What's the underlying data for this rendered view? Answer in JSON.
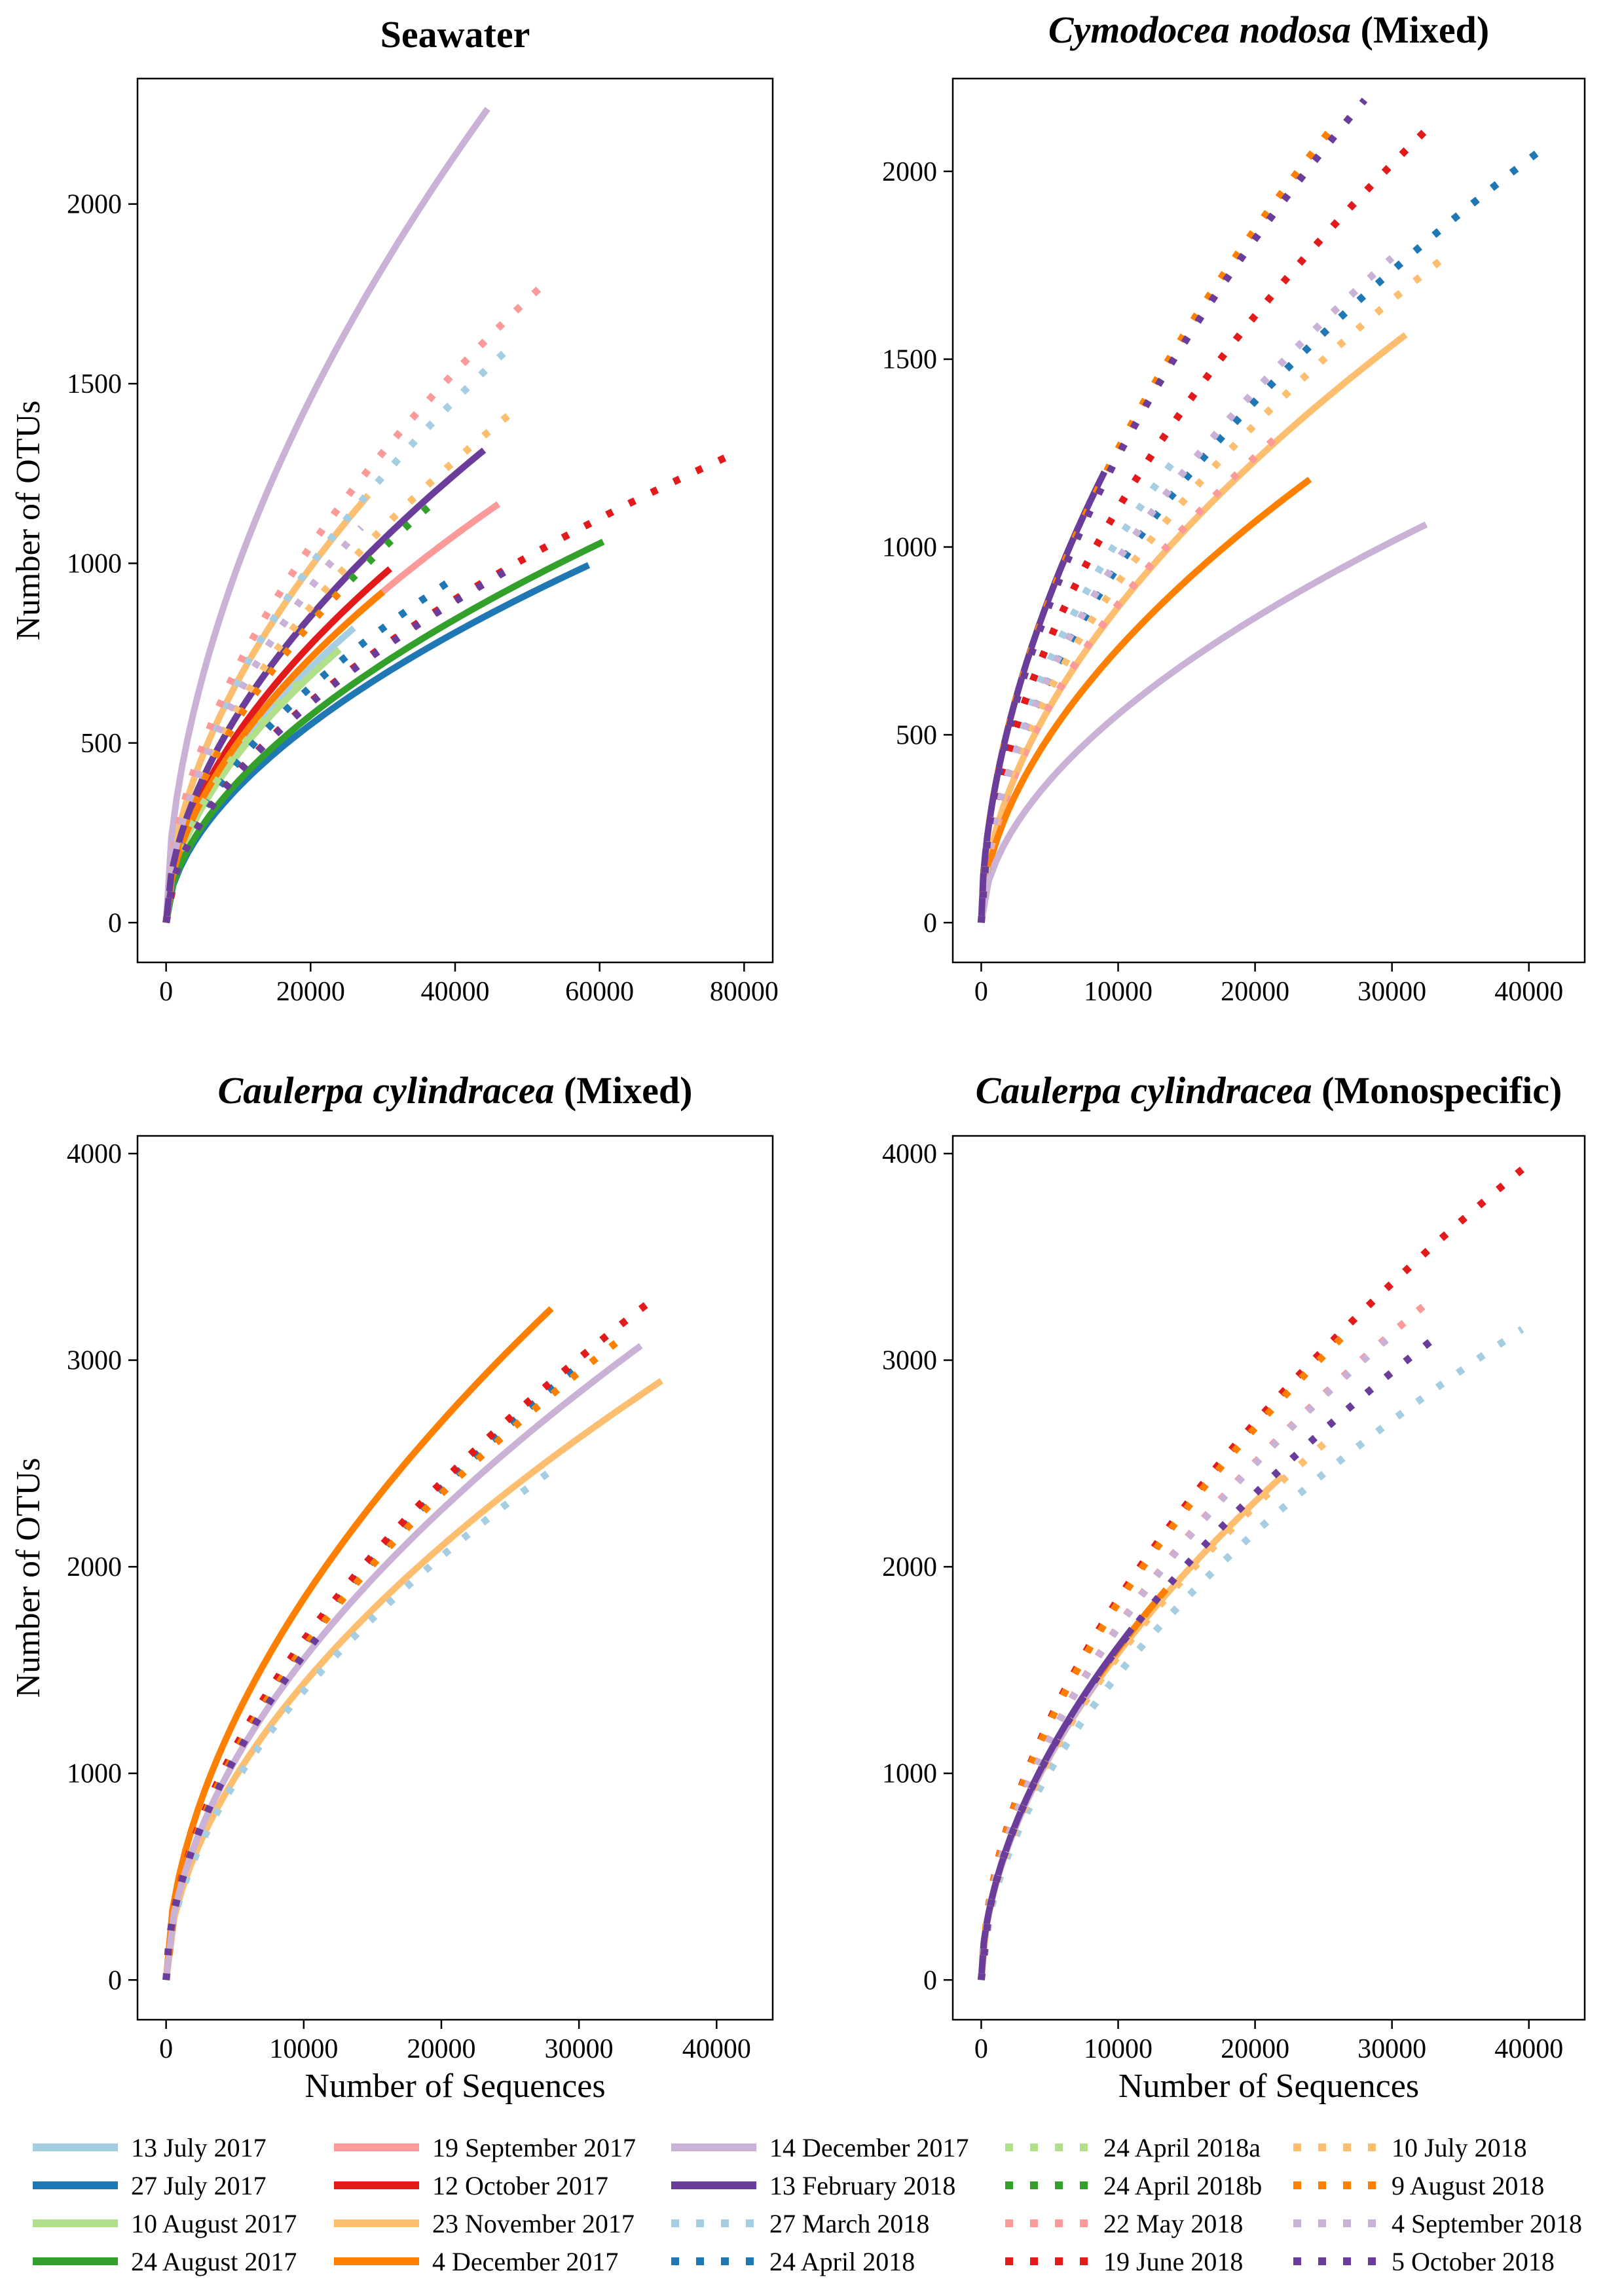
{
  "chart_data": [
    {
      "type": "line",
      "title_parts": [
        {
          "text": "Seawater",
          "italic": false
        }
      ],
      "xlabel": "",
      "ylabel": "Number of OTUs",
      "xlim": [
        0,
        80000
      ],
      "ylim": [
        0,
        2300
      ],
      "xticks": [
        0,
        20000,
        40000,
        60000,
        80000
      ],
      "yticks": [
        0,
        500,
        1000,
        1500,
        2000
      ],
      "series": [
        {
          "name": "13 July 2017",
          "x_end": 26000,
          "y_end": 820
        },
        {
          "name": "27 July 2017",
          "x_end": 58500,
          "y_end": 995
        },
        {
          "name": "10 August 2017",
          "x_end": 24000,
          "y_end": 760
        },
        {
          "name": "24 August 2017",
          "x_end": 60500,
          "y_end": 1060
        },
        {
          "name": "19 September 2017",
          "x_end": 46000,
          "y_end": 1165
        },
        {
          "name": "12 October 2017",
          "x_end": 31000,
          "y_end": 985
        },
        {
          "name": "23 November 2017",
          "x_end": 28000,
          "y_end": 1190
        },
        {
          "name": "4 December 2017",
          "x_end": 30000,
          "y_end": 920
        },
        {
          "name": "14 December 2017",
          "x_end": 44500,
          "y_end": 2265
        },
        {
          "name": "13 February 2018",
          "x_end": 44000,
          "y_end": 1315
        },
        {
          "name": "27 March 2018",
          "x_end": 47000,
          "y_end": 1590
        },
        {
          "name": "24 April 2018",
          "x_end": 40000,
          "y_end": 960
        },
        {
          "name": "24 April 2018a",
          "x_end": 20000,
          "y_end": 700
        },
        {
          "name": "24 April 2018b",
          "x_end": 36500,
          "y_end": 1160
        },
        {
          "name": "22 May 2018",
          "x_end": 53000,
          "y_end": 1790
        },
        {
          "name": "19 June 2018",
          "x_end": 77500,
          "y_end": 1295
        },
        {
          "name": "10 July 2018",
          "x_end": 48500,
          "y_end": 1430
        },
        {
          "name": "9 August 2018",
          "x_end": 25000,
          "y_end": 940
        },
        {
          "name": "4 September 2018",
          "x_end": 27000,
          "y_end": 1100
        },
        {
          "name": "5 October 2018",
          "x_end": 49000,
          "y_end": 1000
        }
      ]
    },
    {
      "type": "line",
      "title_parts": [
        {
          "text": "Cymodocea nodosa",
          "italic": true
        },
        {
          "text": " (Mixed)",
          "italic": false
        }
      ],
      "xlabel": "",
      "ylabel": "",
      "xlim": [
        0,
        42000
      ],
      "ylim": [
        0,
        2200
      ],
      "xticks": [
        0,
        10000,
        20000,
        30000,
        40000
      ],
      "yticks": [
        0,
        500,
        1000,
        1500,
        2000
      ],
      "series": [
        {
          "name": "23 November 2017",
          "x_end": 31000,
          "y_end": 1565
        },
        {
          "name": "4 December 2017",
          "x_end": 24000,
          "y_end": 1180
        },
        {
          "name": "14 December 2017",
          "x_end": 32500,
          "y_end": 1060
        },
        {
          "name": "13 February 2018",
          "x_end": 9000,
          "y_end": 1200
        },
        {
          "name": "27 March 2018",
          "x_end": 14500,
          "y_end": 1250
        },
        {
          "name": "24 April 2018",
          "x_end": 41000,
          "y_end": 2060
        },
        {
          "name": "22 May 2018",
          "x_end": 21500,
          "y_end": 1290
        },
        {
          "name": "19 June 2018",
          "x_end": 32500,
          "y_end": 2110
        },
        {
          "name": "10 July 2018",
          "x_end": 34500,
          "y_end": 1790
        },
        {
          "name": "9 August 2018",
          "x_end": 25500,
          "y_end": 2110
        },
        {
          "name": "4 September 2018",
          "x_end": 30000,
          "y_end": 1770
        },
        {
          "name": "5 October 2018",
          "x_end": 28000,
          "y_end": 2190
        }
      ]
    },
    {
      "type": "line",
      "title_parts": [
        {
          "text": "Caulerpa cylindracea",
          "italic": true
        },
        {
          "text": " (Mixed)",
          "italic": false
        }
      ],
      "xlabel": "Number of Sequences",
      "ylabel": "Number of OTUs",
      "xlim": [
        0,
        42000
      ],
      "ylim": [
        0,
        4000
      ],
      "xticks": [
        0,
        10000,
        20000,
        30000,
        40000
      ],
      "yticks": [
        0,
        1000,
        2000,
        3000,
        4000
      ],
      "series": [
        {
          "name": "23 November 2017",
          "x_end": 36000,
          "y_end": 2900
        },
        {
          "name": "4 December 2017",
          "x_end": 28000,
          "y_end": 3250
        },
        {
          "name": "14 December 2017",
          "x_end": 34500,
          "y_end": 3070
        },
        {
          "name": "27 March 2018",
          "x_end": 28500,
          "y_end": 2490
        },
        {
          "name": "24 April 2018",
          "x_end": 30500,
          "y_end": 3000
        },
        {
          "name": "19 June 2018",
          "x_end": 35500,
          "y_end": 3300
        },
        {
          "name": "9 August 2018",
          "x_end": 33000,
          "y_end": 3100
        },
        {
          "name": "5 October 2018",
          "x_end": 11500,
          "y_end": 1700
        }
      ]
    },
    {
      "type": "line",
      "title_parts": [
        {
          "text": "Caulerpa cylindracea",
          "italic": true
        },
        {
          "text": " (Monospecific)",
          "italic": false
        }
      ],
      "xlabel": "Number of Sequences",
      "ylabel": "",
      "xlim": [
        0,
        42000
      ],
      "ylim": [
        0,
        4000
      ],
      "xticks": [
        0,
        10000,
        20000,
        30000,
        40000
      ],
      "yticks": [
        0,
        1000,
        2000,
        3000,
        4000
      ],
      "series": [
        {
          "name": "23 November 2017",
          "x_end": 22000,
          "y_end": 2440
        },
        {
          "name": "4 December 2017",
          "x_end": 13500,
          "y_end": 1890
        },
        {
          "name": "14 December 2017",
          "x_end": 8500,
          "y_end": 1450
        },
        {
          "name": "13 February 2018",
          "x_end": 11000,
          "y_end": 1700
        },
        {
          "name": "27 March 2018",
          "x_end": 39500,
          "y_end": 3150
        },
        {
          "name": "22 May 2018",
          "x_end": 33000,
          "y_end": 3300
        },
        {
          "name": "19 June 2018",
          "x_end": 40000,
          "y_end": 3950
        },
        {
          "name": "10 July 2018",
          "x_end": 26000,
          "y_end": 2650
        },
        {
          "name": "9 August 2018",
          "x_end": 26500,
          "y_end": 3120
        },
        {
          "name": "4 September 2018",
          "x_end": 30500,
          "y_end": 3150
        },
        {
          "name": "5 October 2018",
          "x_end": 33000,
          "y_end": 3100
        }
      ]
    }
  ],
  "legend": {
    "placement": "bottom",
    "entries": [
      {
        "label": "13 July 2017",
        "color": "#a6cee3",
        "style": "solid"
      },
      {
        "label": "27 July 2017",
        "color": "#1f78b4",
        "style": "solid"
      },
      {
        "label": "10 August 2017",
        "color": "#b2df8a",
        "style": "solid"
      },
      {
        "label": "24 August 2017",
        "color": "#33a02c",
        "style": "solid"
      },
      {
        "label": "19 September 2017",
        "color": "#fb9a99",
        "style": "solid"
      },
      {
        "label": "12 October 2017",
        "color": "#e31a1c",
        "style": "solid"
      },
      {
        "label": "23 November 2017",
        "color": "#fdbf6f",
        "style": "solid"
      },
      {
        "label": "4 December 2017",
        "color": "#ff7f00",
        "style": "solid"
      },
      {
        "label": "14 December 2017",
        "color": "#cab2d6",
        "style": "solid"
      },
      {
        "label": "13 February 2018",
        "color": "#6a3d9a",
        "style": "solid"
      },
      {
        "label": "27 March 2018",
        "color": "#a6cee3",
        "style": "dotted"
      },
      {
        "label": "24 April 2018",
        "color": "#1f78b4",
        "style": "dotted"
      },
      {
        "label": "24 April 2018a",
        "color": "#b2df8a",
        "style": "dotted"
      },
      {
        "label": "24 April 2018b",
        "color": "#33a02c",
        "style": "dotted"
      },
      {
        "label": "22 May 2018",
        "color": "#fb9a99",
        "style": "dotted"
      },
      {
        "label": "19 June 2018",
        "color": "#e31a1c",
        "style": "dotted"
      },
      {
        "label": "10 July 2018",
        "color": "#fdbf6f",
        "style": "dotted"
      },
      {
        "label": "9 August 2018",
        "color": "#ff7f00",
        "style": "dotted"
      },
      {
        "label": "4 September 2018",
        "color": "#cab2d6",
        "style": "dotted"
      },
      {
        "label": "5 October 2018",
        "color": "#6a3d9a",
        "style": "dotted"
      }
    ]
  }
}
